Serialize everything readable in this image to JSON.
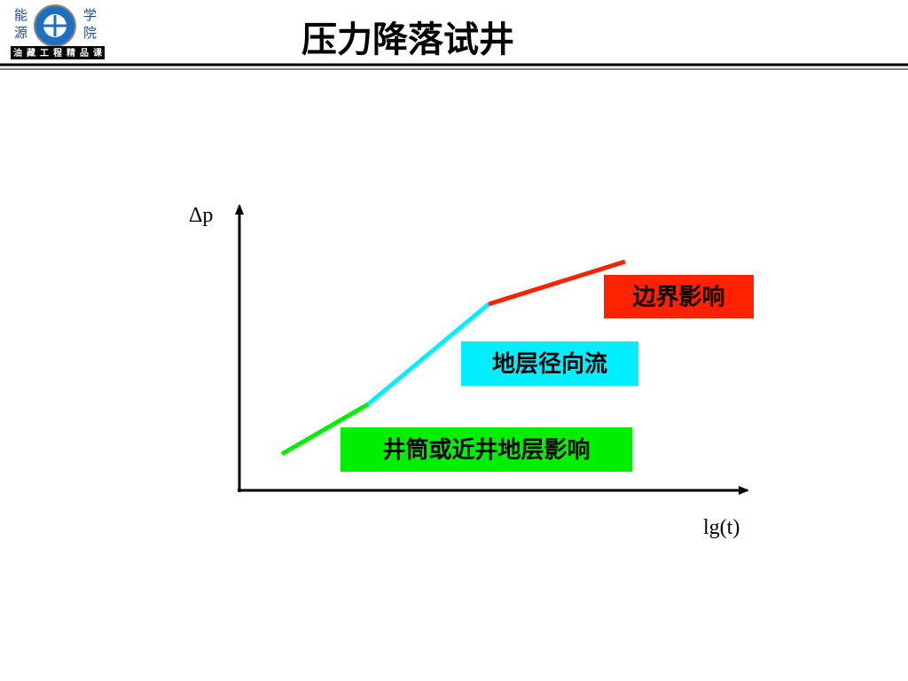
{
  "header": {
    "title": "压力降落试井",
    "logo": {
      "chars": [
        "能",
        "源",
        "学",
        "院"
      ],
      "banner": "油藏工程精品课"
    }
  },
  "diagram": {
    "y_axis_label": "Δp",
    "x_axis_label": "lg(t)",
    "segments": [
      {
        "label": "井筒或近井地层影响",
        "color": "#00ee00"
      },
      {
        "label": "地层径向流",
        "color": "#00eeff"
      },
      {
        "label": "边界影响",
        "color": "#ff2200"
      }
    ]
  }
}
